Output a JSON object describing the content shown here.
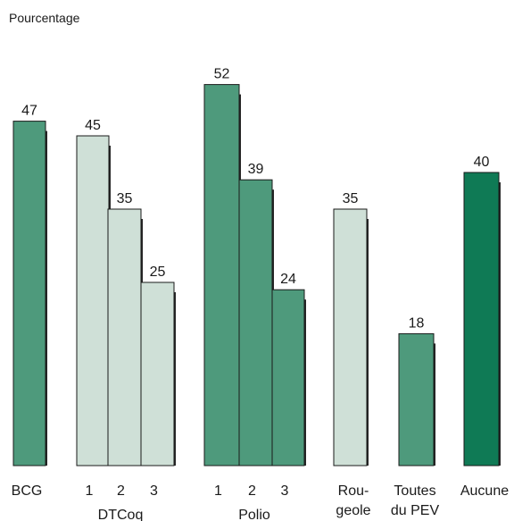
{
  "chart_data": {
    "type": "bar",
    "title": "",
    "ylabel": "Pourcentage",
    "xlabel": "",
    "ylim": [
      0,
      55
    ],
    "grid": false,
    "legend": "none",
    "colors": {
      "dark_green": "#0f7a55",
      "medium_green": "#4e9a7c",
      "light_green": "#cfe0d7",
      "shadow": "#262626",
      "outline": "#1a1a1a"
    },
    "bars": [
      {
        "id": "bcg",
        "tick": "",
        "group": "BCG",
        "value": 47,
        "color": "medium_green"
      },
      {
        "id": "dtcoq-1",
        "tick": "1",
        "group": "DTCoq",
        "value": 45,
        "color": "light_green"
      },
      {
        "id": "dtcoq-2",
        "tick": "2",
        "group": "DTCoq",
        "value": 35,
        "color": "light_green"
      },
      {
        "id": "dtcoq-3",
        "tick": "3",
        "group": "DTCoq",
        "value": 25,
        "color": "light_green"
      },
      {
        "id": "polio-1",
        "tick": "1",
        "group": "Polio",
        "value": 52,
        "color": "medium_green"
      },
      {
        "id": "polio-2",
        "tick": "2",
        "group": "Polio",
        "value": 39,
        "color": "medium_green"
      },
      {
        "id": "polio-3",
        "tick": "3",
        "group": "Polio",
        "value": 24,
        "color": "medium_green"
      },
      {
        "id": "rougeole",
        "tick": "",
        "group": "Rougeole",
        "value": 35,
        "color": "light_green"
      },
      {
        "id": "toutes-du-pev",
        "tick": "",
        "group": "Toutes du PEV",
        "value": 18,
        "color": "medium_green"
      },
      {
        "id": "aucune",
        "tick": "",
        "group": "Aucune",
        "value": 40,
        "color": "dark_green"
      }
    ],
    "group_labels": [
      {
        "id": "bcg",
        "lines": [
          "BCG"
        ]
      },
      {
        "id": "dtcoq",
        "lines": [
          "DTCoq"
        ]
      },
      {
        "id": "polio",
        "lines": [
          "Polio"
        ]
      },
      {
        "id": "rougeole",
        "lines": [
          "Rou-",
          "geole"
        ]
      },
      {
        "id": "toutes-du-pev",
        "lines": [
          "Toutes",
          "du PEV"
        ]
      },
      {
        "id": "aucune",
        "lines": [
          "Aucune"
        ]
      }
    ]
  }
}
